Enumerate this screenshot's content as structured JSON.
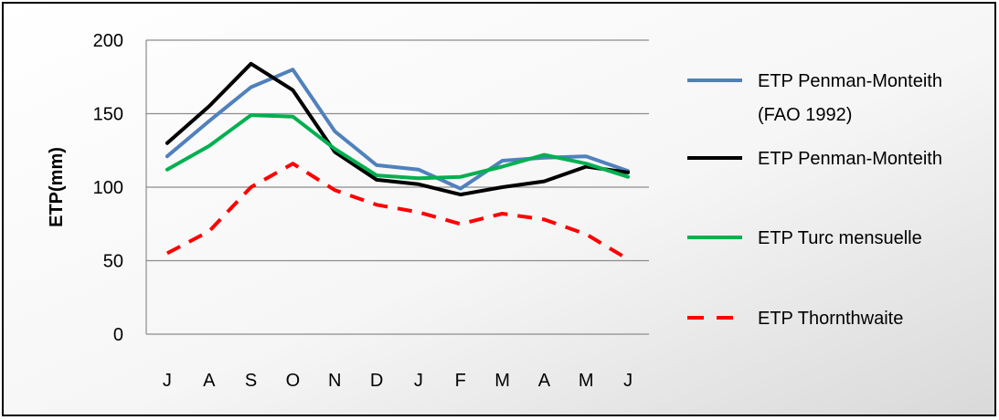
{
  "chart_data": {
    "type": "line",
    "categories": [
      "J",
      "A",
      "S",
      "O",
      "N",
      "D",
      "J",
      "F",
      "M",
      "A",
      "M",
      "J"
    ],
    "ylabel": "ETP(mm)",
    "ylim": [
      0,
      200
    ],
    "yticks": [
      "0",
      "50",
      "100",
      "150",
      "200"
    ],
    "grid": true,
    "legend_position": "right",
    "series": [
      {
        "name": "ETP Penman-Monteith (FAO 1992)",
        "legend_lines": [
          "ETP Penman-Monteith",
          "(FAO 1992)"
        ],
        "color": "#4F81BD",
        "style": "solid",
        "values": [
          121,
          145,
          168,
          180,
          138,
          115,
          112,
          99,
          118,
          120,
          121,
          111
        ]
      },
      {
        "name": "ETP Penman-Monteith",
        "legend_lines": [
          "ETP Penman-Monteith"
        ],
        "color": "#000000",
        "style": "solid",
        "values": [
          130,
          155,
          184,
          166,
          124,
          105,
          102,
          95,
          100,
          104,
          114,
          110
        ]
      },
      {
        "name": "ETP Turc mensuelle",
        "legend_lines": [
          "ETP Turc mensuelle"
        ],
        "color": "#00B050",
        "style": "solid",
        "values": [
          112,
          128,
          149,
          148,
          126,
          108,
          106,
          107,
          114,
          122,
          116,
          107
        ]
      },
      {
        "name": "ETP Thornthwaite",
        "legend_lines": [
          "ETP Thornthwaite"
        ],
        "color": "#FF0000",
        "style": "dashed",
        "values": [
          55,
          70,
          100,
          116,
          98,
          88,
          83,
          75,
          82,
          78,
          68,
          51
        ]
      }
    ]
  }
}
